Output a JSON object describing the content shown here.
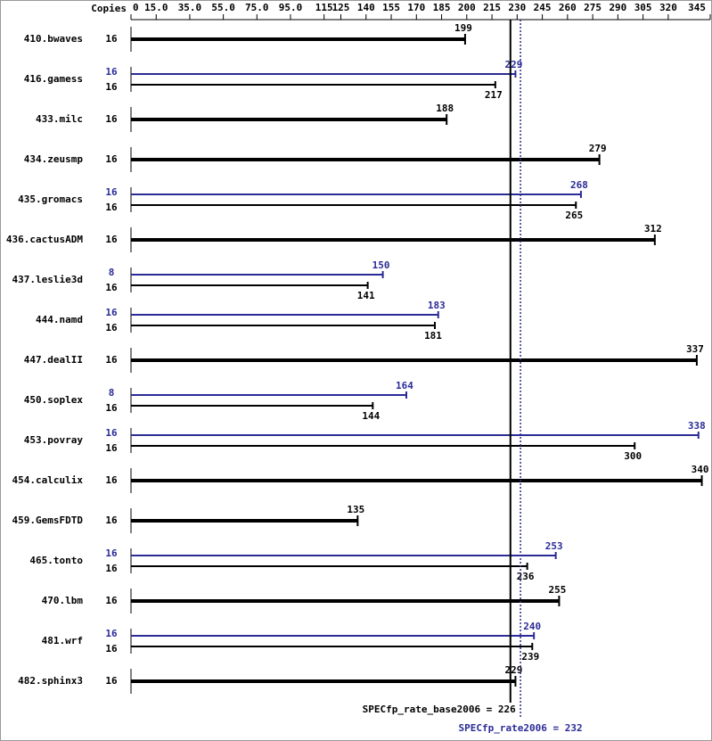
{
  "chart_data": {
    "type": "bar",
    "copies_label": "Copies",
    "categories": [
      "410.bwaves",
      "416.gamess",
      "433.milc",
      "434.zeusmp",
      "435.gromacs",
      "436.cactusADM",
      "437.leslie3d",
      "444.namd",
      "447.dealII",
      "450.soplex",
      "453.povray",
      "454.calculix",
      "459.GemsFDTD",
      "465.tonto",
      "470.lbm",
      "481.wrf",
      "482.sphinx3"
    ],
    "series": [
      {
        "color": "#000000",
        "copies": [
          16,
          16,
          16,
          16,
          16,
          16,
          16,
          16,
          16,
          16,
          16,
          16,
          16,
          16,
          16,
          16,
          16
        ],
        "values": [
          199,
          217,
          188,
          279,
          265,
          312,
          141,
          181,
          337,
          144,
          300,
          340,
          135,
          236,
          255,
          239,
          229
        ]
      },
      {
        "color": "#2b2b96",
        "copies": [
          null,
          16,
          null,
          null,
          16,
          null,
          8,
          16,
          null,
          8,
          16,
          null,
          null,
          16,
          null,
          16,
          null
        ],
        "values": [
          null,
          229,
          null,
          null,
          268,
          null,
          150,
          183,
          null,
          164,
          338,
          null,
          null,
          253,
          null,
          240,
          null
        ]
      }
    ],
    "xlim": [
      0,
      345
    ],
    "xticks": [
      0,
      {
        "value": 15,
        "label": "15.0"
      },
      {
        "value": 35,
        "label": "35.0"
      },
      {
        "value": 55,
        "label": "55.0"
      },
      {
        "value": 75,
        "label": "75.0"
      },
      {
        "value": 95,
        "label": "95.0"
      },
      115,
      125,
      140,
      155,
      170,
      185,
      200,
      215,
      230,
      245,
      260,
      275,
      290,
      305,
      320,
      345
    ],
    "reference_lines": [
      {
        "value": 226,
        "label": "SPECfp_rate_base2006 = 226",
        "color": "#000000",
        "style": "solid"
      },
      {
        "value": 232,
        "label": "SPECfp_rate2006 = 232",
        "color": "#2b2b96",
        "style": "dotted"
      }
    ]
  }
}
